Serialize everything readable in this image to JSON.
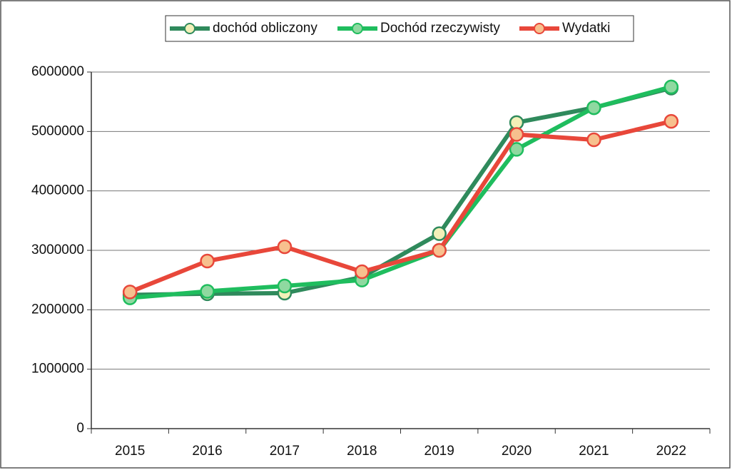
{
  "chart_data": {
    "type": "line",
    "categories": [
      "2015",
      "2016",
      "2017",
      "2018",
      "2019",
      "2020",
      "2021",
      "2022"
    ],
    "series": [
      {
        "name": "dochód obliczony",
        "color": "#2f8a5c",
        "marker_fill": "#f3f0b8",
        "values": [
          2250000,
          2270000,
          2280000,
          2550000,
          3280000,
          5150000,
          5400000,
          5730000
        ]
      },
      {
        "name": "Dochód rzeczywisty",
        "color": "#1fbd5e",
        "marker_fill": "#8fd9a0",
        "values": [
          2200000,
          2310000,
          2400000,
          2500000,
          3000000,
          4700000,
          5400000,
          5750000
        ]
      },
      {
        "name": "Wydatki",
        "color": "#e8473a",
        "marker_fill": "#f7c08e",
        "values": [
          2300000,
          2820000,
          3060000,
          2640000,
          3000000,
          4950000,
          4860000,
          5170000
        ]
      }
    ],
    "ylim": [
      0,
      6000000
    ],
    "yticks": [
      0,
      1000000,
      2000000,
      3000000,
      4000000,
      5000000,
      6000000
    ],
    "grid": true,
    "legend": "top"
  }
}
